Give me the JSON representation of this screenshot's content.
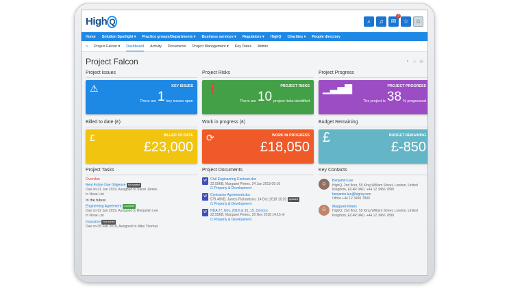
{
  "app": {
    "logo_text": "High",
    "logo_q": "Q"
  },
  "topbar": {
    "notification_count": "3"
  },
  "main_nav": [
    "Home",
    "Solution Spotlight ▾",
    "Practice groups/Departments ▾",
    "Business services ▾",
    "Regulators ▾",
    "HighQ",
    "Charities ▾",
    "People directory"
  ],
  "sub_nav": {
    "site": "Project Falcon ▾",
    "tabs": [
      "Dashboard",
      "Activity",
      "Documents",
      "Project Management ▾",
      "Key Dates",
      "Admin"
    ]
  },
  "page": {
    "title": "Project Falcon"
  },
  "colors": {
    "blue": "#1e88e5",
    "green": "#43a047",
    "purple": "#9c4dc4",
    "yellow": "#f1c40f",
    "orange": "#f05a28",
    "teal": "#64b5c6"
  },
  "cards_row1": [
    {
      "section": "Project Issues",
      "icon": "warning-icon",
      "label": "KEY ISSUES",
      "prefix": "There are",
      "value": "1",
      "suffix": "key issues open"
    },
    {
      "section": "Project Risks",
      "icon": "alert-icon",
      "label": "PROJECT RISKS",
      "prefix": "There are",
      "value": "10",
      "suffix": "project risks identified"
    },
    {
      "section": "Project Progress",
      "icon": "bar-chart-icon",
      "label": "PROJECT PROGRESS",
      "prefix": "The project is",
      "value": "38",
      "suffix": "% progressed"
    }
  ],
  "cards_row2": [
    {
      "section": "Billed to date (£)",
      "icon": "coin-icon",
      "label": "BILLED TO DATE",
      "value": "£23,000"
    },
    {
      "section": "Work in progress (£)",
      "icon": "refresh-icon",
      "label": "WORK IN PROGRESS",
      "value": "£18,050"
    },
    {
      "section": "Budget Remaining",
      "icon": "pound-icon",
      "label": "BUDGET REMAINING",
      "value": "£-850"
    }
  ],
  "tasks": {
    "title": "Project Tasks",
    "overdue_label": "Overdue",
    "future_label": "In the future",
    "items": [
      {
        "name": "Real Estate Due Diligence",
        "status": "Not started",
        "meta": "Due on 01 Jan 2019, Assigned to Sarah James",
        "list": "In None List"
      },
      {
        "name": "Engineering Agreement",
        "status": "Complete",
        "meta": "Due on 02 Jan 2019, Assigned to Benjamin Lee",
        "list": "In None List"
      },
      {
        "name": "Insurance",
        "status": "Not started",
        "meta": "Due on 05 Feb 2019, Assigned to Mike Thomas",
        "list": ""
      }
    ]
  },
  "documents": {
    "title": "Project Documents",
    "items": [
      {
        "name": "Civil Engineering Contract.doc",
        "meta": "22.55KB, Margaret Peters, 24 Jan 2019 09:16",
        "folder": "/1 Property & Development",
        "tag": ""
      },
      {
        "name": "Contractor Agreement.doc",
        "meta": "579.46KB, James Richardson, 14 Dec 2018 16:20",
        "folder": "/1 Property & Development",
        "tag": "Updated"
      },
      {
        "name": "NDA 27_Nov_2018 at 15_15_19.docx",
        "meta": "22.55KB, Margaret Peters, 26 Nov 2018 14:15",
        "folder": "/1 Property & Development",
        "tag": ""
      }
    ]
  },
  "contacts": {
    "title": "Key Contacts",
    "items": [
      {
        "name": "Benjamin Lee",
        "addr": "HighQ, 2nd floor, 55 King William Street, London, United Kingdom, EC4R 9AD, +44 12 3456 7890",
        "email": "benjamin.lee@highq.com",
        "office": "Office +44 12 3456 7890"
      },
      {
        "name": "Margaret Peters",
        "addr": "HighQ, 2nd floor, 55 King William Street, London, United Kingdom, EC4R 9AD, +44 12 3456 7890",
        "email": "",
        "office": ""
      }
    ]
  }
}
